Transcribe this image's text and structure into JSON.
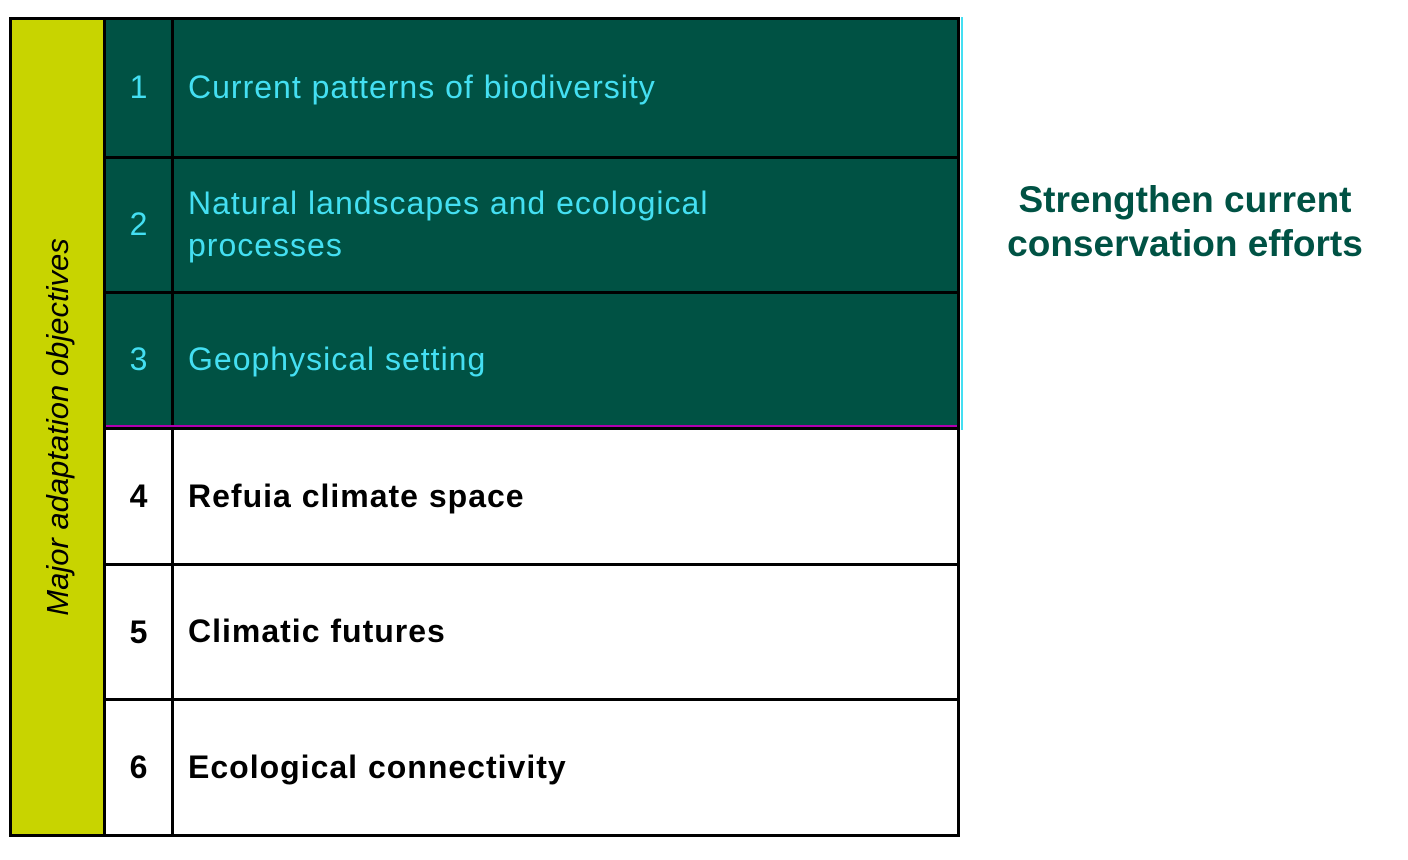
{
  "side_label": "Major adaptation objectives",
  "group_label": "Strengthen current conservation efforts",
  "rows": [
    {
      "number": "1",
      "label": "Current patterns of biodiversity"
    },
    {
      "number": "2",
      "label": "Natural landscapes and ecological processes"
    },
    {
      "number": "3",
      "label": "Geophysical setting"
    },
    {
      "number": "4",
      "label": "Refuia climate space"
    },
    {
      "number": "5",
      "label": "Climatic futures"
    },
    {
      "number": "6",
      "label": "Ecological connectivity"
    }
  ],
  "colors": {
    "side_bar": "#c8d400",
    "dark_row": "#005244",
    "dark_text": "#44dff2",
    "group_label": "#005244"
  }
}
